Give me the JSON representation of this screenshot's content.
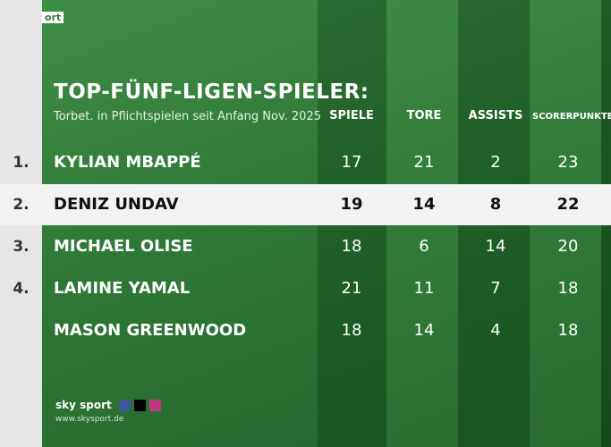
{
  "corner_label": "ort",
  "header": {
    "title": "TOP-FÜNF-LIGEN-SPIELER:",
    "subtitle": "Torbet. in Pflichtspielen seit Anfang Nov. 2025"
  },
  "table": {
    "columns": [
      "SPIELE",
      "TORE",
      "ASSISTS",
      "SCORERPUNKTE"
    ],
    "rows": [
      {
        "rank": "1.",
        "name": "KYLIAN MBAPPÉ",
        "values": [
          17,
          21,
          2,
          23
        ]
      },
      {
        "rank": "2.",
        "name": "DENIZ UNDAV",
        "values": [
          19,
          14,
          8,
          22
        ],
        "highlighted": true
      },
      {
        "rank": "3.",
        "name": "MICHAEL OLISE",
        "values": [
          18,
          6,
          14,
          20
        ]
      },
      {
        "rank": "4.",
        "name": "LAMINE YAMAL",
        "values": [
          21,
          11,
          7,
          18
        ]
      },
      {
        "name": "MASON GREENWOOD",
        "values": [
          18,
          14,
          4,
          18
        ]
      }
    ]
  },
  "footer": {
    "brand": "sky sport",
    "url": "www.skysport.de"
  }
}
